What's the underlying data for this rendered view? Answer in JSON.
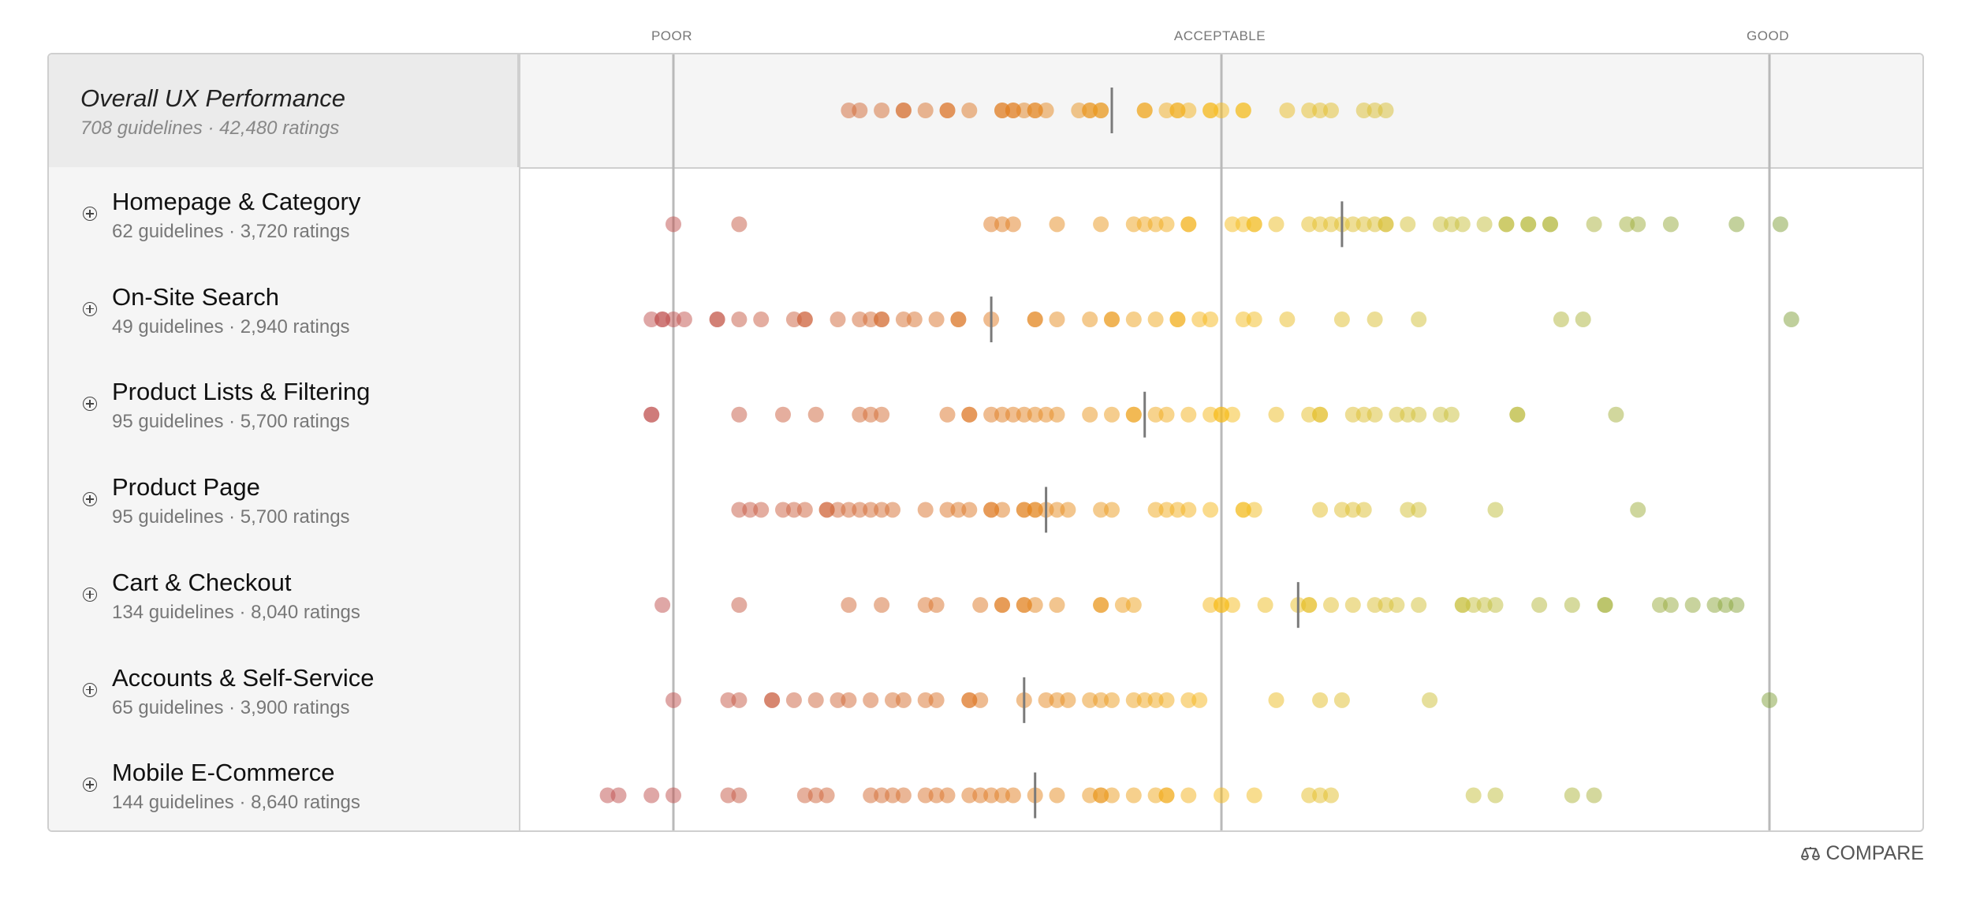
{
  "scale": {
    "poor": "POOR",
    "acceptable": "ACCEPTABLE",
    "good": "GOOD",
    "poor_value": 0,
    "acceptable_value": 50,
    "good_value": 100
  },
  "overall": {
    "title": "Overall UX Performance",
    "subtitle": "708 guidelines · 42,480 ratings"
  },
  "compare_label": "COMPARE",
  "colors": {
    "red": "#c0504d",
    "orange": "#e07b20",
    "yellow": "#f7bb1a",
    "olive": "#c8c03c",
    "green": "#7fa03a",
    "median": "#7a7a7a",
    "gridline": "#b9b9b9"
  },
  "chart_data": {
    "type": "scatter",
    "title": "",
    "xlabel": "",
    "ylabel": "",
    "xlim": [
      -8,
      110
    ],
    "x_ticks": [
      {
        "value": 0,
        "label": "POOR"
      },
      {
        "value": 50,
        "label": "ACCEPTABLE"
      },
      {
        "value": 100,
        "label": "GOOD"
      }
    ],
    "series": [
      {
        "name": "Overall UX Performance",
        "subtitle": "708 guidelines · 42,480 ratings",
        "median": 40,
        "values": [
          16,
          17,
          19,
          21,
          21,
          23,
          25,
          25,
          27,
          30,
          30,
          31,
          31,
          32,
          33,
          33,
          34,
          37,
          38,
          38,
          39,
          39,
          43,
          43,
          45,
          46,
          46,
          47,
          49,
          49,
          50,
          52,
          52,
          56,
          58,
          59,
          60,
          63,
          64,
          65
        ]
      },
      {
        "name": "Homepage & Category",
        "subtitle": "62 guidelines · 3,720 ratings",
        "median": 61,
        "values": [
          0,
          6,
          29,
          30,
          31,
          35,
          39,
          42,
          43,
          44,
          45,
          47,
          47,
          51,
          52,
          53,
          53,
          55,
          58,
          59,
          60,
          61,
          62,
          63,
          64,
          65,
          65,
          67,
          70,
          71,
          72,
          74,
          76,
          76,
          78,
          78,
          80,
          80,
          84,
          87,
          88,
          91,
          97,
          101
        ]
      },
      {
        "name": "On-Site Search",
        "subtitle": "49 guidelines · 2,940 ratings",
        "median": 29,
        "values": [
          -2,
          -1,
          -1,
          0,
          1,
          4,
          4,
          6,
          8,
          11,
          12,
          12,
          15,
          17,
          18,
          19,
          19,
          21,
          22,
          24,
          26,
          26,
          29,
          33,
          33,
          35,
          38,
          40,
          40,
          42,
          44,
          46,
          46,
          48,
          49,
          52,
          53,
          56,
          61,
          64,
          68,
          81,
          83,
          102
        ]
      },
      {
        "name": "Product Lists & Filtering",
        "subtitle": "95 guidelines · 5,700 ratings",
        "median": 43,
        "values": [
          -2,
          -2,
          6,
          10,
          13,
          17,
          18,
          19,
          25,
          27,
          27,
          29,
          30,
          31,
          32,
          33,
          34,
          35,
          38,
          40,
          42,
          42,
          44,
          45,
          47,
          49,
          50,
          50,
          51,
          55,
          58,
          59,
          59,
          62,
          63,
          64,
          66,
          67,
          68,
          70,
          71,
          77,
          77,
          86
        ]
      },
      {
        "name": "Product Page",
        "subtitle": "95 guidelines · 5,700 ratings",
        "median": 34,
        "values": [
          6,
          7,
          8,
          10,
          11,
          12,
          14,
          14,
          15,
          16,
          17,
          18,
          19,
          20,
          23,
          25,
          26,
          27,
          29,
          29,
          30,
          32,
          32,
          33,
          33,
          34,
          35,
          36,
          39,
          40,
          44,
          45,
          46,
          47,
          49,
          52,
          52,
          53,
          59,
          61,
          62,
          63,
          67,
          68,
          75,
          88
        ]
      },
      {
        "name": "Cart & Checkout",
        "subtitle": "134 guidelines · 8,040 ratings",
        "median": 57,
        "values": [
          -1,
          6,
          16,
          19,
          23,
          24,
          28,
          30,
          30,
          32,
          32,
          33,
          35,
          39,
          39,
          41,
          42,
          49,
          50,
          50,
          51,
          54,
          57,
          58,
          58,
          60,
          62,
          64,
          65,
          66,
          68,
          72,
          72,
          73,
          74,
          75,
          79,
          82,
          85,
          85,
          90,
          91,
          93,
          95,
          96,
          97
        ]
      },
      {
        "name": "Accounts & Self-Service",
        "subtitle": "65 guidelines · 3,900 ratings",
        "median": 32,
        "values": [
          0,
          5,
          6,
          9,
          9,
          11,
          13,
          15,
          16,
          18,
          20,
          21,
          23,
          24,
          27,
          27,
          28,
          32,
          34,
          35,
          36,
          38,
          39,
          40,
          42,
          43,
          44,
          45,
          47,
          48,
          55,
          59,
          61,
          69,
          100
        ]
      },
      {
        "name": "Mobile E-Commerce",
        "subtitle": "144 guidelines · 8,640 ratings",
        "median": 33,
        "values": [
          -6,
          -5,
          -2,
          0,
          5,
          6,
          12,
          13,
          14,
          18,
          19,
          20,
          21,
          23,
          24,
          25,
          27,
          28,
          29,
          30,
          31,
          33,
          35,
          38,
          39,
          39,
          40,
          42,
          44,
          45,
          45,
          47,
          50,
          53,
          58,
          59,
          60,
          73,
          75,
          82,
          84
        ]
      }
    ]
  }
}
